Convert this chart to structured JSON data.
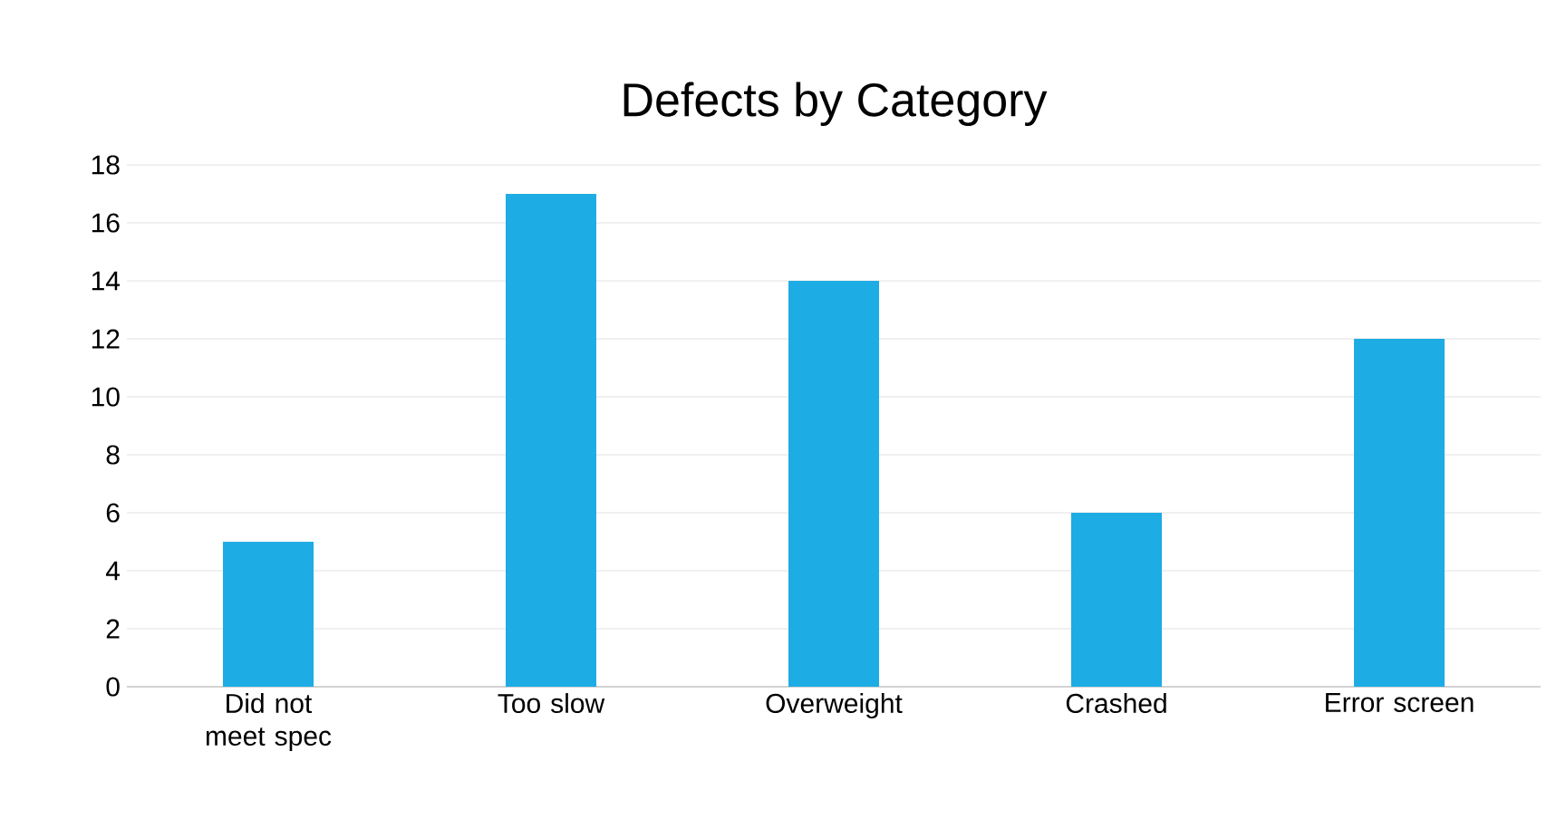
{
  "chart_data": {
    "type": "bar",
    "title": "Defects by Category",
    "categories": [
      "Did not meet spec",
      "Too slow",
      "Overweight",
      "Crashed",
      "Error screen"
    ],
    "values": [
      5,
      17,
      14,
      6,
      12
    ],
    "color": "#1eace4",
    "ylim": [
      0,
      18
    ],
    "yticks": [
      0,
      2,
      4,
      6,
      8,
      10,
      12,
      14,
      16,
      18
    ],
    "grid": "y"
  }
}
